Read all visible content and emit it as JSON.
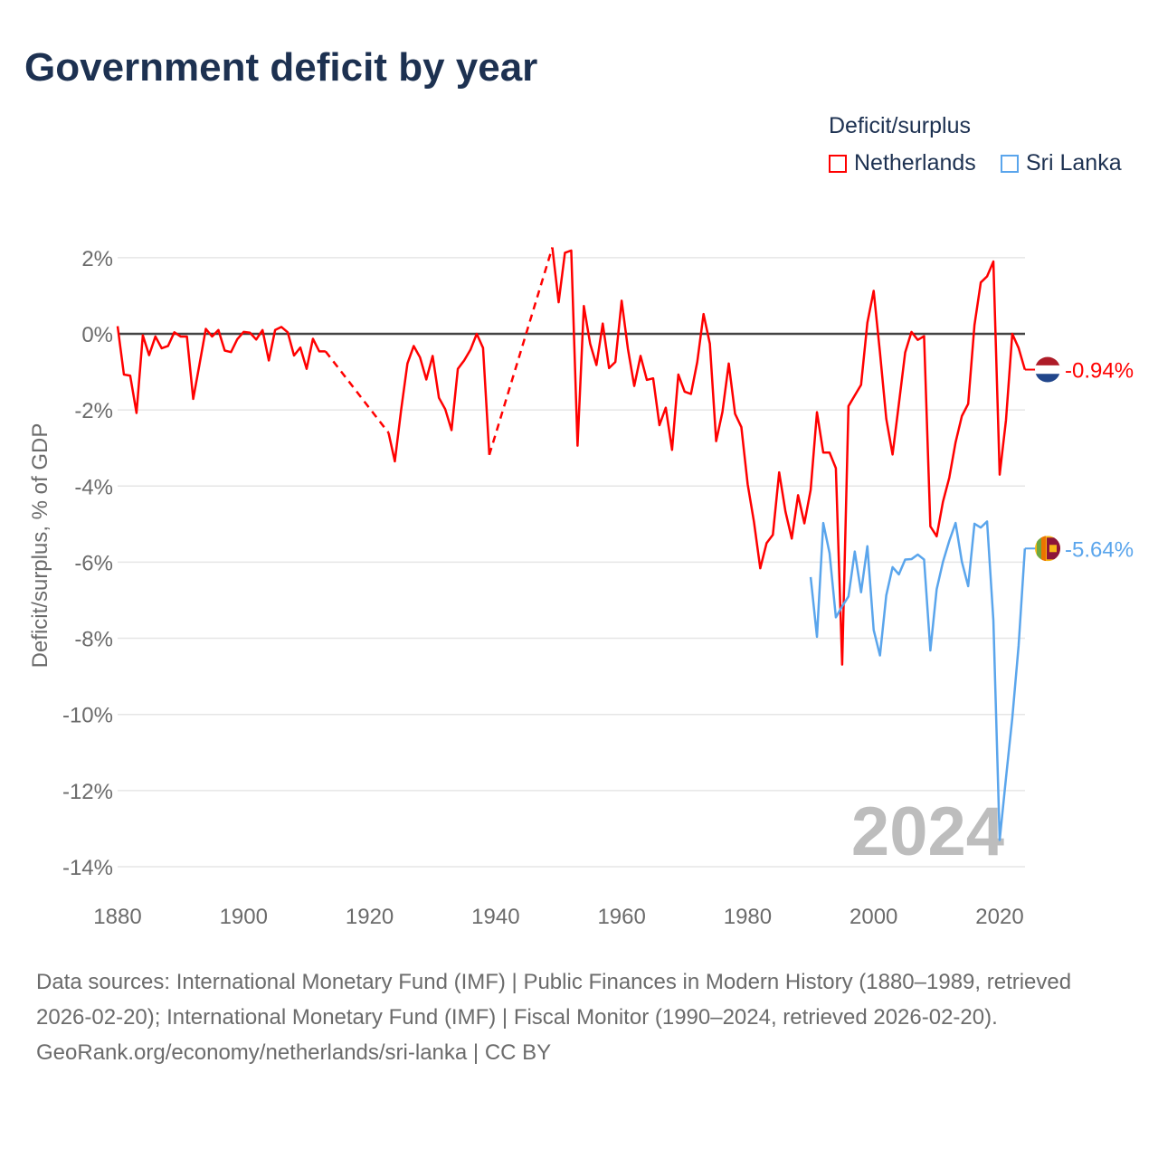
{
  "title": "Government deficit by year",
  "legend": {
    "title": "Deficit/surplus",
    "items": [
      {
        "name": "Netherlands",
        "color": "#ff0000"
      },
      {
        "name": "Sri Lanka",
        "color": "#5aa5ec"
      }
    ]
  },
  "footer": {
    "sources": "Data sources: International Monetary Fund (IMF) | Public Finances in Modern History (1880–1989, retrieved 2026-02-20); International Monetary Fund (IMF) | Fiscal Monitor (1990–2024, retrieved 2026-02-20).",
    "credit": "GeoRank.org/economy/netherlands/sri-lanka | CC BY"
  },
  "chart_data": {
    "type": "line",
    "title": "Government deficit by year",
    "xlabel": "",
    "ylabel": "Deficit/surplus, % of GDP",
    "xlim": [
      1880,
      2024
    ],
    "ylim": [
      -14,
      2
    ],
    "x_ticks": [
      "1880",
      "1900",
      "1920",
      "1940",
      "1960",
      "1980",
      "2000",
      "2020"
    ],
    "y_ticks": [
      "2%",
      "0%",
      "-2%",
      "-4%",
      "-6%",
      "-8%",
      "-10%",
      "-12%",
      "-14%"
    ],
    "year_label": "2024",
    "series": [
      {
        "name": "Netherlands",
        "color": "#ff0000",
        "end_label": "-0.94%",
        "segments": [
          {
            "start": 1880,
            "values": [
              0.2,
              -1.07,
              -1.1,
              -2.08,
              -0.04,
              -0.56,
              -0.07,
              -0.38,
              -0.32,
              0.04,
              -0.07,
              -0.07,
              -1.71,
              -0.8,
              0.13,
              -0.07,
              0.1,
              -0.44,
              -0.48,
              -0.14,
              0.05,
              0.03,
              -0.15,
              0.1,
              -0.7,
              0.1,
              0.18,
              0.04,
              -0.57,
              -0.36,
              -0.92,
              -0.13,
              -0.46,
              -0.46
            ]
          },
          {
            "start": 1923,
            "values": [
              -2.6,
              -3.35,
              -2.0,
              -0.78,
              -0.32,
              -0.62,
              -1.2,
              -0.58,
              -1.68,
              -1.98,
              -2.53,
              -0.92,
              -0.7,
              -0.42,
              0.0,
              -0.37,
              -3.18
            ]
          },
          {
            "start": 1949,
            "values": [
              2.27,
              0.83,
              2.13,
              2.19,
              -2.94,
              0.73,
              -0.26,
              -0.82,
              0.27,
              -0.9,
              -0.74,
              0.87,
              -0.4,
              -1.37,
              -0.58,
              -1.21,
              -1.17,
              -2.4,
              -1.94,
              -3.05,
              -1.07,
              -1.52,
              -1.58,
              -0.74,
              0.52,
              -0.26,
              -2.82,
              -2.05,
              -0.78,
              -2.1,
              -2.45,
              -3.95,
              -4.94,
              -6.16,
              -5.5,
              -5.28,
              -3.64,
              -4.67,
              -5.38,
              -4.24,
              -4.98,
              -4.1,
              -2.06,
              -3.12,
              -3.12,
              -3.53,
              -8.69,
              -1.9,
              -1.62,
              -1.34,
              0.29,
              1.13,
              -0.49,
              -2.23,
              -3.17,
              -1.84,
              -0.49,
              0.05,
              -0.16,
              -0.06,
              -5.06,
              -5.32,
              -4.41,
              -3.78,
              -2.85,
              -2.16,
              -1.84,
              0.23,
              1.35,
              1.51,
              1.9,
              -3.7,
              -2.27,
              0.0,
              -0.37,
              -0.94
            ]
          }
        ]
      },
      {
        "name": "Sri Lanka",
        "color": "#5aa5ec",
        "end_label": "-5.64%",
        "segments": [
          {
            "start": 1990,
            "values": [
              -6.39,
              -7.96,
              -4.97,
              -5.76,
              -7.45,
              -7.16,
              -6.9,
              -5.72,
              -6.79,
              -5.58,
              -7.78,
              -8.45,
              -6.87,
              -6.13,
              -6.32,
              -5.93,
              -5.92,
              -5.8,
              -5.93,
              -8.32,
              -6.71,
              -5.99,
              -5.44,
              -4.97,
              -5.99,
              -6.63,
              -4.99,
              -5.09,
              -4.93,
              -7.53,
              -13.3,
              -11.67,
              -10.1,
              -8.2,
              -5.64
            ]
          }
        ]
      }
    ]
  }
}
